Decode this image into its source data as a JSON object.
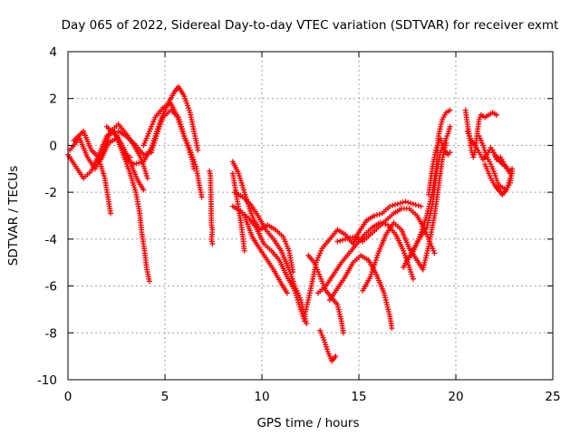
{
  "chart_data": {
    "type": "scatter",
    "title": "Day 065 of 2022, Sidereal Day-to-day VTEC variation (SDTVAR) for receiver exmt",
    "xlabel": "GPS time / hours",
    "ylabel": "SDTVAR / TECUs",
    "xlim": [
      0,
      25
    ],
    "ylim": [
      -10,
      4
    ],
    "xticks": [
      0,
      5,
      10,
      15,
      20,
      25
    ],
    "yticks": [
      -10,
      -8,
      -6,
      -4,
      -2,
      0,
      2,
      4
    ],
    "xtick_labels": [
      "0",
      "5",
      "10",
      "15",
      "20",
      "25"
    ],
    "ytick_labels": [
      "-10",
      "-8",
      "-6",
      "-4",
      "-2",
      "0",
      "2",
      "4"
    ],
    "grid": true,
    "marker": "+",
    "color": "#ff0000",
    "series": [
      {
        "name": "s1",
        "points": [
          [
            0.0,
            -0.4
          ],
          [
            0.4,
            -0.9
          ],
          [
            0.8,
            -1.4
          ],
          [
            1.2,
            -1.1
          ],
          [
            1.6,
            -0.4
          ],
          [
            2.0,
            0.4
          ],
          [
            2.4,
            0.6
          ],
          [
            2.8,
            0.0
          ],
          [
            3.2,
            -0.7
          ],
          [
            3.6,
            -1.5
          ],
          [
            3.9,
            -1.9
          ]
        ]
      },
      {
        "name": "s2",
        "points": [
          [
            0.1,
            -0.2
          ],
          [
            0.6,
            0.3
          ],
          [
            1.0,
            -0.5
          ],
          [
            1.4,
            -1.0
          ],
          [
            1.8,
            -0.3
          ],
          [
            2.2,
            0.6
          ],
          [
            2.6,
            0.9
          ],
          [
            3.0,
            0.5
          ],
          [
            3.4,
            0.0
          ],
          [
            3.8,
            -0.6
          ],
          [
            4.1,
            -1.4
          ]
        ]
      },
      {
        "name": "s3",
        "points": [
          [
            0.3,
            0.2
          ],
          [
            0.8,
            0.6
          ],
          [
            1.2,
            -0.2
          ],
          [
            1.7,
            -0.6
          ],
          [
            2.1,
            0.1
          ],
          [
            2.5,
            0.3
          ],
          [
            2.9,
            -0.3
          ],
          [
            3.2,
            -0.5
          ]
        ]
      },
      {
        "name": "s4",
        "points": [
          [
            1.6,
            -0.6
          ],
          [
            1.9,
            -1.4
          ],
          [
            2.1,
            -2.4
          ],
          [
            2.2,
            -2.9
          ]
        ]
      },
      {
        "name": "s5",
        "points": [
          [
            2.0,
            0.8
          ],
          [
            2.5,
            0.4
          ],
          [
            2.9,
            -0.5
          ],
          [
            3.2,
            -1.2
          ],
          [
            3.5,
            -2.0
          ],
          [
            3.7,
            -2.9
          ],
          [
            3.8,
            -3.7
          ],
          [
            3.95,
            -4.5
          ],
          [
            4.05,
            -5.2
          ],
          [
            4.2,
            -5.8
          ]
        ]
      },
      {
        "name": "s6",
        "points": [
          [
            2.6,
            0.6
          ],
          [
            3.0,
            0.4
          ],
          [
            3.5,
            0.0
          ],
          [
            3.9,
            -0.4
          ],
          [
            4.3,
            -0.3
          ],
          [
            4.6,
            0.5
          ],
          [
            4.9,
            1.2
          ],
          [
            5.3,
            1.5
          ],
          [
            5.7,
            1.2
          ],
          [
            6.0,
            0.4
          ],
          [
            6.3,
            -0.2
          ],
          [
            6.6,
            -0.9
          ],
          [
            6.8,
            -1.8
          ],
          [
            6.9,
            -2.2
          ]
        ]
      },
      {
        "name": "s7",
        "points": [
          [
            3.0,
            -0.6
          ],
          [
            3.4,
            -0.8
          ],
          [
            3.9,
            -0.7
          ],
          [
            4.3,
            -0.1
          ],
          [
            4.7,
            0.9
          ],
          [
            5.1,
            1.7
          ],
          [
            5.5,
            2.3
          ],
          [
            5.7,
            2.5
          ],
          [
            6.0,
            2.1
          ],
          [
            6.3,
            1.4
          ],
          [
            6.5,
            0.6
          ],
          [
            6.7,
            -0.2
          ]
        ]
      },
      {
        "name": "s8",
        "points": [
          [
            3.9,
            0.0
          ],
          [
            4.2,
            0.6
          ],
          [
            4.5,
            1.2
          ],
          [
            4.9,
            1.6
          ],
          [
            5.3,
            1.8
          ],
          [
            5.6,
            1.3
          ],
          [
            5.9,
            0.6
          ],
          [
            6.2,
            -0.1
          ],
          [
            6.4,
            -0.6
          ],
          [
            6.5,
            -1.0
          ]
        ]
      },
      {
        "name": "s9",
        "points": [
          [
            7.3,
            -1.1
          ],
          [
            7.35,
            -1.3
          ],
          [
            7.4,
            -3.4
          ],
          [
            7.45,
            -3.6
          ],
          [
            7.4,
            -4.0
          ],
          [
            7.45,
            -4.2
          ]
        ]
      },
      {
        "name": "s10",
        "points": [
          [
            8.5,
            -0.7
          ],
          [
            8.8,
            -1.2
          ],
          [
            9.1,
            -2.0
          ],
          [
            9.4,
            -2.8
          ],
          [
            9.6,
            -3.2
          ],
          [
            9.9,
            -3.6
          ],
          [
            10.3,
            -3.4
          ],
          [
            10.7,
            -3.6
          ],
          [
            11.1,
            -3.9
          ],
          [
            11.4,
            -4.5
          ],
          [
            11.6,
            -5.4
          ]
        ]
      },
      {
        "name": "s11",
        "points": [
          [
            8.5,
            -1.2
          ],
          [
            8.7,
            -2.2
          ],
          [
            8.9,
            -3.2
          ],
          [
            9.0,
            -3.8
          ],
          [
            9.1,
            -4.5
          ]
        ]
      },
      {
        "name": "s12",
        "points": [
          [
            8.6,
            -2.0
          ],
          [
            9.0,
            -2.2
          ],
          [
            9.4,
            -2.5
          ],
          [
            9.8,
            -3.0
          ],
          [
            10.2,
            -3.6
          ],
          [
            10.6,
            -4.0
          ],
          [
            11.0,
            -4.5
          ],
          [
            11.4,
            -5.3
          ],
          [
            11.7,
            -6.0
          ],
          [
            12.0,
            -6.6
          ],
          [
            12.3,
            -7.6
          ]
        ]
      },
      {
        "name": "s13",
        "points": [
          [
            8.5,
            -2.6
          ],
          [
            8.9,
            -2.8
          ],
          [
            9.3,
            -3.1
          ],
          [
            9.7,
            -3.5
          ],
          [
            10.1,
            -4.2
          ],
          [
            10.5,
            -4.5
          ],
          [
            10.9,
            -4.9
          ],
          [
            11.3,
            -5.6
          ],
          [
            11.7,
            -6.2
          ],
          [
            12.0,
            -7.0
          ],
          [
            12.2,
            -7.5
          ]
        ]
      },
      {
        "name": "s14",
        "points": [
          [
            9.1,
            -3.0
          ],
          [
            9.5,
            -3.9
          ],
          [
            9.8,
            -4.3
          ],
          [
            10.2,
            -4.8
          ],
          [
            10.6,
            -5.3
          ],
          [
            11.0,
            -5.9
          ],
          [
            11.3,
            -6.3
          ]
        ]
      },
      {
        "name": "s15",
        "points": [
          [
            12.2,
            -7.3
          ],
          [
            12.5,
            -6.2
          ],
          [
            12.8,
            -5.0
          ],
          [
            13.1,
            -4.4
          ],
          [
            13.5,
            -4.0
          ],
          [
            13.9,
            -3.6
          ],
          [
            14.3,
            -3.8
          ],
          [
            14.7,
            -4.2
          ],
          [
            15.0,
            -3.7
          ],
          [
            15.4,
            -3.2
          ],
          [
            15.8,
            -3.0
          ],
          [
            16.2,
            -2.9
          ],
          [
            16.6,
            -2.6
          ],
          [
            17.0,
            -2.5
          ],
          [
            17.4,
            -2.4
          ],
          [
            17.8,
            -2.5
          ],
          [
            18.2,
            -2.6
          ]
        ]
      },
      {
        "name": "s16",
        "points": [
          [
            12.4,
            -4.7
          ],
          [
            12.7,
            -5.0
          ],
          [
            13.0,
            -5.6
          ],
          [
            13.3,
            -6.2
          ],
          [
            13.6,
            -6.5
          ],
          [
            13.9,
            -6.8
          ],
          [
            14.1,
            -7.5
          ],
          [
            14.2,
            -8.0
          ]
        ]
      },
      {
        "name": "s17",
        "points": [
          [
            12.9,
            -6.3
          ],
          [
            13.3,
            -6.0
          ],
          [
            13.7,
            -5.5
          ],
          [
            14.1,
            -5.0
          ],
          [
            14.5,
            -4.6
          ],
          [
            14.9,
            -4.2
          ],
          [
            15.3,
            -3.8
          ],
          [
            15.7,
            -3.5
          ],
          [
            16.1,
            -3.3
          ],
          [
            16.5,
            -3.4
          ],
          [
            16.9,
            -3.8
          ],
          [
            17.3,
            -4.5
          ],
          [
            17.6,
            -5.2
          ],
          [
            17.8,
            -5.7
          ]
        ]
      },
      {
        "name": "s18",
        "points": [
          [
            13.0,
            -7.9
          ],
          [
            13.2,
            -8.3
          ],
          [
            13.4,
            -8.8
          ],
          [
            13.6,
            -9.2
          ],
          [
            13.8,
            -9.0
          ]
        ]
      },
      {
        "name": "s19",
        "points": [
          [
            13.5,
            -6.6
          ],
          [
            13.9,
            -6.1
          ],
          [
            14.3,
            -5.6
          ],
          [
            14.7,
            -5.0
          ],
          [
            15.1,
            -4.7
          ],
          [
            15.5,
            -4.9
          ],
          [
            15.9,
            -5.5
          ],
          [
            16.3,
            -6.3
          ],
          [
            16.6,
            -7.3
          ],
          [
            16.7,
            -7.8
          ]
        ]
      },
      {
        "name": "s20",
        "points": [
          [
            13.9,
            -4.1
          ],
          [
            14.3,
            -4.0
          ],
          [
            14.8,
            -3.9
          ],
          [
            15.2,
            -4.1
          ],
          [
            15.6,
            -3.8
          ],
          [
            16.0,
            -3.5
          ],
          [
            16.4,
            -3.2
          ],
          [
            16.8,
            -2.9
          ],
          [
            17.2,
            -2.7
          ],
          [
            17.6,
            -2.7
          ],
          [
            18.0,
            -3.0
          ],
          [
            18.4,
            -3.6
          ],
          [
            18.7,
            -4.2
          ],
          [
            18.9,
            -4.6
          ]
        ]
      },
      {
        "name": "s21",
        "points": [
          [
            15.2,
            -6.2
          ],
          [
            15.6,
            -5.6
          ],
          [
            16.0,
            -4.6
          ],
          [
            16.4,
            -3.8
          ],
          [
            16.8,
            -3.3
          ],
          [
            17.2,
            -3.6
          ],
          [
            17.6,
            -4.4
          ],
          [
            18.0,
            -4.9
          ],
          [
            18.3,
            -5.3
          ],
          [
            18.6,
            -4.3
          ],
          [
            18.9,
            -3.0
          ],
          [
            19.1,
            -1.8
          ],
          [
            19.3,
            -0.6
          ],
          [
            19.5,
            0.1
          ]
        ]
      },
      {
        "name": "s22",
        "points": [
          [
            17.3,
            -5.2
          ],
          [
            17.7,
            -4.6
          ],
          [
            18.1,
            -4.0
          ],
          [
            18.5,
            -3.5
          ],
          [
            18.8,
            -2.5
          ],
          [
            19.0,
            -1.2
          ],
          [
            19.2,
            -0.3
          ],
          [
            19.4,
            0.1
          ],
          [
            19.6,
            0.5
          ],
          [
            19.7,
            0.8
          ]
        ]
      },
      {
        "name": "s23",
        "points": [
          [
            17.7,
            -4.7
          ],
          [
            18.1,
            -4.0
          ],
          [
            18.5,
            -3.0
          ],
          [
            18.8,
            -2.0
          ],
          [
            19.0,
            -0.9
          ],
          [
            19.1,
            0.4
          ],
          [
            19.3,
            1.1
          ],
          [
            19.5,
            1.4
          ],
          [
            19.7,
            1.5
          ]
        ]
      },
      {
        "name": "s24",
        "points": [
          [
            18.6,
            -2.1
          ],
          [
            18.8,
            -0.9
          ],
          [
            19.0,
            -0.1
          ],
          [
            19.2,
            0.3
          ],
          [
            19.4,
            -0.2
          ],
          [
            19.6,
            -0.4
          ],
          [
            19.7,
            -0.3
          ]
        ]
      },
      {
        "name": "s25",
        "points": [
          [
            20.5,
            1.5
          ],
          [
            20.6,
            0.9
          ],
          [
            20.7,
            0.4
          ],
          [
            20.8,
            -0.2
          ],
          [
            20.9,
            -0.5
          ],
          [
            21.0,
            -0.2
          ],
          [
            21.1,
            0.5
          ],
          [
            21.2,
            1.1
          ],
          [
            21.3,
            1.3
          ],
          [
            21.5,
            1.2
          ],
          [
            21.7,
            1.3
          ],
          [
            21.9,
            1.4
          ],
          [
            22.1,
            1.3
          ]
        ]
      },
      {
        "name": "s26",
        "points": [
          [
            20.6,
            0.6
          ],
          [
            20.8,
            0.2
          ],
          [
            21.0,
            0.0
          ],
          [
            21.2,
            -0.3
          ],
          [
            21.4,
            -0.6
          ],
          [
            21.6,
            -0.4
          ],
          [
            21.8,
            -0.1
          ],
          [
            22.0,
            -0.4
          ],
          [
            22.2,
            -0.6
          ],
          [
            22.4,
            -0.8
          ],
          [
            22.6,
            -0.9
          ],
          [
            22.8,
            -1.2
          ]
        ]
      },
      {
        "name": "s27",
        "points": [
          [
            21.2,
            0.4
          ],
          [
            21.4,
            0.0
          ],
          [
            21.6,
            -0.5
          ],
          [
            21.8,
            -0.8
          ],
          [
            22.0,
            -1.2
          ],
          [
            22.2,
            -1.7
          ],
          [
            22.4,
            -1.8
          ],
          [
            22.6,
            -1.9
          ],
          [
            22.7,
            -1.7
          ],
          [
            22.8,
            -1.4
          ]
        ]
      },
      {
        "name": "s28",
        "points": [
          [
            21.5,
            -0.8
          ],
          [
            21.8,
            -1.4
          ],
          [
            22.0,
            -1.7
          ],
          [
            22.2,
            -1.9
          ],
          [
            22.4,
            -2.1
          ],
          [
            22.6,
            -1.9
          ],
          [
            22.8,
            -1.6
          ],
          [
            22.9,
            -1.1
          ]
        ]
      },
      {
        "name": "s29",
        "points": [
          [
            21.9,
            -0.2
          ],
          [
            22.1,
            -0.6
          ],
          [
            22.3,
            -0.5
          ],
          [
            22.5,
            -0.8
          ],
          [
            22.7,
            -1.1
          ],
          [
            22.9,
            -1.0
          ]
        ]
      }
    ]
  }
}
